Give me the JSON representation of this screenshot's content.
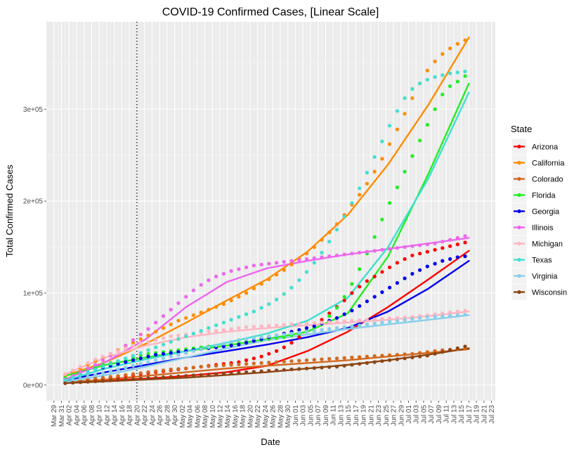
{
  "chart_data": {
    "type": "scatter",
    "title": "COVID-19 Confirmed Cases, [Linear Scale]",
    "xlabel": "Date",
    "ylabel": "Total Confirmed Cases",
    "ylim": [
      -17000,
      395000
    ],
    "y_ticks": [
      {
        "value": 0,
        "label": "0e+00"
      },
      {
        "value": 100000,
        "label": "1e+05"
      },
      {
        "value": 200000,
        "label": "2e+05"
      },
      {
        "value": 300000,
        "label": "3e+05"
      }
    ],
    "x_ticks": [
      "Mar 29",
      "Mar 31",
      "Apr 02",
      "Apr 04",
      "Apr 06",
      "Apr 08",
      "Apr 10",
      "Apr 12",
      "Apr 14",
      "Apr 16",
      "Apr 18",
      "Apr 20",
      "Apr 22",
      "Apr 24",
      "Apr 26",
      "Apr 28",
      "Apr 30",
      "May 02",
      "May 04",
      "May 06",
      "May 08",
      "May 10",
      "May 12",
      "May 14",
      "May 16",
      "May 18",
      "May 20",
      "May 22",
      "May 24",
      "May 26",
      "May 28",
      "May 30",
      "Jun 01",
      "Jun 03",
      "Jun 05",
      "Jun 07",
      "Jun 09",
      "Jun 11",
      "Jun 13",
      "Jun 15",
      "Jun 17",
      "Jun 19",
      "Jun 21",
      "Jun 23",
      "Jun 25",
      "Jun 27",
      "Jun 29",
      "Jul 01",
      "Jul 03",
      "Jul 05",
      "Jul 07",
      "Jul 09",
      "Jul 11",
      "Jul 13",
      "Jul 15",
      "Jul 17",
      "Jul 19",
      "Jul 21",
      "Jul 23"
    ],
    "xlim": [
      "Mar 27",
      "Jul 24"
    ],
    "reference_line": "Apr 20",
    "grid": true,
    "legend_title": "State",
    "legend_position": "right",
    "series_x": {
      "start": "Apr 01",
      "end": "Jul 17",
      "step_days": 2
    },
    "series": [
      {
        "name": "Arizona",
        "color": "#ff0000",
        "trend": [
          3000,
          5000,
          7000,
          10000,
          14000,
          21000,
          37000,
          58000,
          85000,
          115000,
          146000
        ],
        "values": [
          2000,
          3000,
          4000,
          5000,
          6000,
          7000,
          8000,
          9000,
          10000,
          11000,
          12000,
          13000,
          14000,
          15000,
          16000,
          17000,
          18000,
          19000,
          20000,
          21000,
          22000,
          23000,
          24000,
          25000,
          27000,
          29000,
          31000,
          34000,
          37000,
          41000,
          46000,
          52000,
          58000,
          64000,
          71000,
          78000,
          85000,
          92000,
          100000,
          107000,
          113000,
          118000,
          123000,
          128000,
          133000,
          137000,
          141000,
          143000,
          145000,
          147000,
          149000,
          151000,
          153000,
          155000
        ]
      },
      {
        "name": "California",
        "color": "#ff8c00",
        "trend": [
          10000,
          25000,
          45000,
          68000,
          92000,
          115000,
          145000,
          185000,
          240000,
          305000,
          378000
        ],
        "values": [
          10000,
          14000,
          18000,
          22000,
          26000,
          30000,
          34000,
          38000,
          42000,
          46000,
          50000,
          54000,
          58000,
          62000,
          66000,
          70000,
          73000,
          76000,
          79000,
          82000,
          85000,
          88000,
          92000,
          96000,
          100000,
          105000,
          110000,
          115000,
          120000,
          125000,
          131000,
          137000,
          143000,
          150000,
          158000,
          166000,
          175000,
          185000,
          196000,
          207000,
          219000,
          232000,
          246000,
          262000,
          278000,
          295000,
          312000,
          328000,
          342000,
          352000,
          360000,
          366000,
          371000,
          375000
        ]
      },
      {
        "name": "Colorado",
        "color": "#d2691e",
        "trend": [
          3000,
          6000,
          10000,
          14000,
          18000,
          21000,
          24000,
          27000,
          31000,
          35000,
          39000
        ],
        "values": [
          3000,
          4000,
          5000,
          6000,
          7000,
          8000,
          9000,
          10000,
          11000,
          12000,
          13000,
          14000,
          15000,
          16000,
          17000,
          17500,
          18000,
          19000,
          20000,
          20500,
          21000,
          21500,
          22000,
          22500,
          23000,
          23500,
          24000,
          24500,
          25000,
          25500,
          26000,
          26500,
          27000,
          27500,
          28000,
          28500,
          29000,
          29500,
          30000,
          30500,
          31000,
          31500,
          32000,
          32500,
          33000,
          33500,
          34000,
          35000,
          36000,
          37000,
          38000,
          38500,
          39000,
          39500
        ]
      },
      {
        "name": "Florida",
        "color": "#22ee22",
        "trend": [
          10000,
          22000,
          30000,
          37000,
          43000,
          50000,
          58000,
          78000,
          140000,
          230000,
          328000
        ],
        "values": [
          8000,
          11000,
          14000,
          17000,
          20000,
          22000,
          24000,
          26000,
          28000,
          30000,
          32000,
          34000,
          35000,
          36000,
          37000,
          38000,
          39000,
          40000,
          41000,
          42000,
          43000,
          44000,
          45000,
          46000,
          47000,
          48000,
          49000,
          50000,
          51000,
          52000,
          54000,
          56000,
          59000,
          63000,
          68000,
          75000,
          84000,
          96000,
          110000,
          126000,
          143000,
          161000,
          180000,
          198000,
          215000,
          232000,
          249000,
          266000,
          283000,
          300000,
          316000,
          325000,
          330000,
          336000
        ]
      },
      {
        "name": "Georgia",
        "color": "#0000ee",
        "trend": [
          5000,
          14000,
          22000,
          30000,
          37000,
          44000,
          52000,
          62000,
          80000,
          105000,
          135000
        ],
        "values": [
          5000,
          8000,
          11000,
          14000,
          17000,
          19000,
          21000,
          23000,
          25000,
          27000,
          29000,
          31000,
          33000,
          34000,
          35000,
          36000,
          37000,
          38000,
          39000,
          40000,
          41000,
          42000,
          43000,
          44000,
          46000,
          48000,
          50000,
          52000,
          54000,
          56000,
          58000,
          60000,
          62000,
          64000,
          67000,
          70000,
          73000,
          77000,
          81000,
          86000,
          91000,
          96000,
          101000,
          106000,
          111000,
          116000,
          121000,
          125000,
          129000,
          132000,
          135000,
          137000,
          139000,
          140000
        ]
      },
      {
        "name": "Illinois",
        "color": "#ee66ee",
        "trend": [
          6000,
          25000,
          50000,
          85000,
          112000,
          127000,
          135000,
          142000,
          148000,
          154000,
          160000
        ],
        "values": [
          6000,
          10000,
          14000,
          18000,
          22000,
          27000,
          32000,
          37000,
          43000,
          49000,
          55000,
          61000,
          68000,
          75000,
          82000,
          89000,
          96000,
          103000,
          109000,
          114000,
          118000,
          121000,
          124000,
          126000,
          128000,
          130000,
          131000,
          132000,
          133000,
          134000,
          135000,
          136000,
          137000,
          138000,
          139000,
          140000,
          141000,
          142000,
          143000,
          144000,
          145000,
          146000,
          147000,
          148000,
          149000,
          150000,
          151000,
          152000,
          153000,
          154000,
          156000,
          158000,
          160000,
          162000
        ]
      },
      {
        "name": "Michigan",
        "color": "#ffb6c1",
        "trend": [
          12000,
          30000,
          43000,
          52000,
          58000,
          62000,
          65000,
          68000,
          71000,
          75000,
          80000
        ],
        "values": [
          12000,
          16000,
          20000,
          24000,
          28000,
          31000,
          34000,
          37000,
          40000,
          43000,
          45000,
          47000,
          49000,
          51000,
          53000,
          54000,
          55000,
          56000,
          57000,
          58000,
          59000,
          60000,
          61000,
          62000,
          63000,
          63500,
          64000,
          64500,
          65000,
          65500,
          66000,
          66500,
          67000,
          67500,
          68000,
          68500,
          69000,
          69500,
          70000,
          70500,
          71000,
          71500,
          72000,
          72500,
          73000,
          73500,
          74000,
          75000,
          76000,
          77000,
          78000,
          79000,
          80000,
          81000
        ]
      },
      {
        "name": "Texas",
        "color": "#40e0d0",
        "trend": [
          5000,
          18000,
          28000,
          37000,
          46000,
          56000,
          70000,
          95000,
          150000,
          225000,
          318000
        ],
        "values": [
          5000,
          8000,
          11000,
          14000,
          17000,
          20000,
          23000,
          26000,
          29000,
          32000,
          35000,
          38000,
          41000,
          44000,
          47000,
          50000,
          53000,
          56000,
          59000,
          62000,
          65000,
          68000,
          71000,
          74000,
          77000,
          80000,
          84000,
          88000,
          93000,
          99000,
          106000,
          114000,
          123000,
          133000,
          144000,
          156000,
          169000,
          183000,
          198000,
          214000,
          231000,
          248000,
          265000,
          282000,
          298000,
          312000,
          322000,
          328000,
          332000,
          335000,
          337000,
          339000,
          340000,
          341000
        ]
      },
      {
        "name": "Virginia",
        "color": "#87ceeb",
        "trend": [
          3000,
          11000,
          20000,
          30000,
          40000,
          49000,
          55000,
          61000,
          66000,
          71000,
          76000
        ],
        "values": [
          3000,
          5000,
          7000,
          9000,
          11000,
          13000,
          15000,
          17000,
          19000,
          21000,
          23000,
          25000,
          27000,
          29000,
          31000,
          33000,
          35000,
          37000,
          39000,
          41000,
          43000,
          45000,
          47000,
          49000,
          50000,
          51000,
          52000,
          53000,
          54000,
          55000,
          56000,
          57000,
          58000,
          59000,
          60000,
          61000,
          62000,
          63000,
          64000,
          65000,
          66000,
          67000,
          68000,
          69000,
          70000,
          71000,
          72000,
          73000,
          74000,
          74500,
          75000,
          75500,
          76000,
          76500
        ]
      },
      {
        "name": "Wisconsin",
        "color": "#8b4513",
        "trend": [
          2000,
          4000,
          6000,
          8000,
          11000,
          14000,
          18000,
          22000,
          27000,
          33000,
          40000
        ],
        "values": [
          2000,
          2500,
          3000,
          3500,
          4000,
          4500,
          5000,
          5500,
          6000,
          6500,
          7000,
          7500,
          8000,
          8500,
          9000,
          9500,
          10000,
          10500,
          11000,
          11500,
          12000,
          12500,
          13000,
          13500,
          14000,
          14500,
          15000,
          15500,
          16000,
          16500,
          17000,
          17500,
          18000,
          18500,
          19000,
          19500,
          20000,
          21000,
          22000,
          23000,
          24000,
          25000,
          26000,
          27000,
          28000,
          29000,
          30000,
          31000,
          32000,
          34000,
          36000,
          38000,
          40000,
          42000
        ]
      }
    ]
  }
}
